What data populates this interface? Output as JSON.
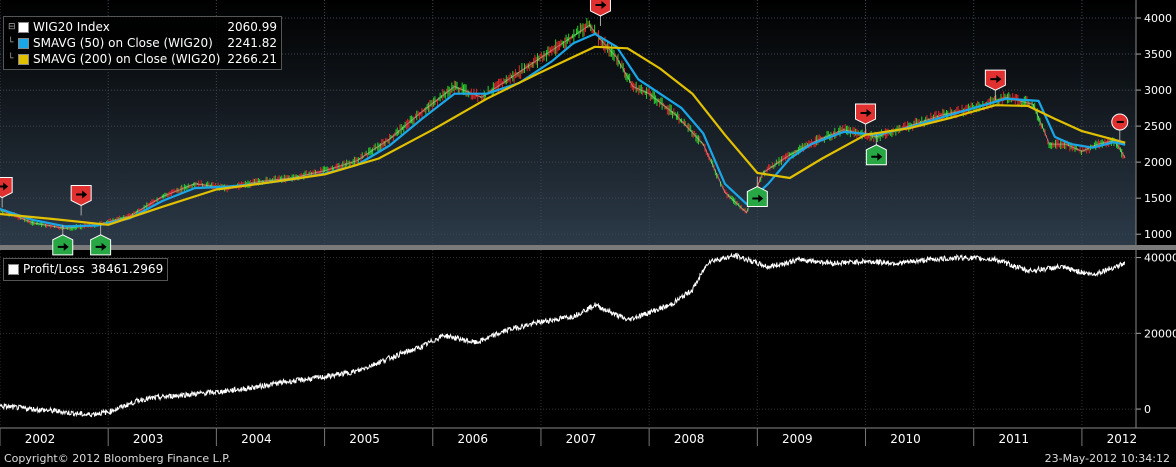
{
  "legend": {
    "items": [
      {
        "name": "WIG20 Index",
        "value": "2060.99",
        "color": "#ffffff"
      },
      {
        "name": "SMAVG (50) on Close (WIG20)",
        "value": "2241.82",
        "color": "#1aa7e8"
      },
      {
        "name": "SMAVG (200) on Close (WIG20)",
        "value": "2266.21",
        "color": "#e0c000"
      }
    ]
  },
  "pl_legend": {
    "name": "Profit/Loss",
    "value": "38461.2969",
    "color": "#ffffff"
  },
  "footer": {
    "copyright": "Copyright© 2012 Bloomberg Finance L.P.",
    "timestamp": "23-May-2012 10:34:12"
  },
  "chart_data": [
    {
      "type": "line",
      "panel": "price",
      "xlim": [
        2002.0,
        2012.5
      ],
      "ylim": [
        850,
        4250
      ],
      "y_ticks": [
        1000,
        1500,
        2000,
        2500,
        3000,
        3500,
        4000
      ],
      "y_tick_labels": [
        "1000",
        "1500",
        "2000",
        "2500",
        "3000",
        "3500",
        "4000"
      ],
      "grid": true,
      "series": [
        {
          "name": "WIG20 Index",
          "color": "#ffffff",
          "x": [
            2001.6,
            2002.0,
            2002.3,
            2002.6,
            2002.9,
            2003.2,
            2003.5,
            2003.8,
            2004.1,
            2004.4,
            2004.7,
            2005.0,
            2005.3,
            2005.6,
            2005.9,
            2006.2,
            2006.45,
            2006.7,
            2007.0,
            2007.3,
            2007.45,
            2007.55,
            2007.7,
            2007.85,
            2008.0,
            2008.25,
            2008.5,
            2008.7,
            2008.9,
            2009.05,
            2009.3,
            2009.55,
            2009.8,
            2010.1,
            2010.4,
            2010.7,
            2011.0,
            2011.3,
            2011.55,
            2011.7,
            2011.85,
            2012.0,
            2012.15,
            2012.3,
            2012.4
          ],
          "y": [
            1370,
            1340,
            1160,
            1080,
            1130,
            1250,
            1520,
            1700,
            1640,
            1730,
            1780,
            1880,
            2020,
            2320,
            2700,
            3050,
            2900,
            3150,
            3450,
            3750,
            3900,
            3700,
            3450,
            3050,
            2950,
            2650,
            2250,
            1580,
            1300,
            1850,
            2100,
            2300,
            2450,
            2350,
            2500,
            2650,
            2750,
            2900,
            2800,
            2250,
            2250,
            2150,
            2250,
            2300,
            2060
          ]
        },
        {
          "name": "SMAVG (50) on Close (WIG20)",
          "color": "#1aa7e8",
          "x": [
            2001.6,
            2002.0,
            2002.3,
            2002.6,
            2002.9,
            2003.2,
            2003.5,
            2003.8,
            2004.1,
            2004.4,
            2004.7,
            2005.0,
            2005.3,
            2005.6,
            2005.9,
            2006.2,
            2006.5,
            2006.8,
            2007.1,
            2007.3,
            2007.5,
            2007.7,
            2007.9,
            2008.1,
            2008.3,
            2008.5,
            2008.7,
            2008.9,
            2009.1,
            2009.3,
            2009.5,
            2009.8,
            2010.1,
            2010.4,
            2010.7,
            2011.0,
            2011.3,
            2011.6,
            2011.75,
            2011.9,
            2012.1,
            2012.3,
            2012.4
          ],
          "y": [
            1370,
            1350,
            1200,
            1110,
            1120,
            1220,
            1460,
            1640,
            1660,
            1700,
            1760,
            1840,
            1960,
            2230,
            2600,
            2950,
            2950,
            3100,
            3400,
            3650,
            3780,
            3600,
            3150,
            2950,
            2750,
            2400,
            1700,
            1420,
            1700,
            2050,
            2250,
            2420,
            2380,
            2480,
            2620,
            2750,
            2880,
            2850,
            2350,
            2250,
            2200,
            2280,
            2240
          ]
        },
        {
          "name": "SMAVG (200) on Close (WIG20)",
          "color": "#e0c000",
          "x": [
            2001.6,
            2002.0,
            2002.5,
            2003.0,
            2003.5,
            2004.0,
            2004.5,
            2005.0,
            2005.5,
            2006.0,
            2006.5,
            2007.0,
            2007.5,
            2007.8,
            2008.1,
            2008.4,
            2008.7,
            2009.0,
            2009.3,
            2009.6,
            2010.0,
            2010.4,
            2010.8,
            2011.2,
            2011.5,
            2011.75,
            2012.0,
            2012.4
          ],
          "y": [
            1310,
            1280,
            1210,
            1130,
            1380,
            1620,
            1720,
            1830,
            2050,
            2450,
            2880,
            3250,
            3600,
            3580,
            3300,
            2950,
            2380,
            1850,
            1780,
            2050,
            2380,
            2470,
            2620,
            2790,
            2780,
            2600,
            2430,
            2270
          ]
        }
      ],
      "annotations": [
        {
          "label": "sell",
          "color": "#e03030",
          "x": 2002.02,
          "y": 1370
        },
        {
          "label": "buy",
          "color": "#28a745",
          "x": 2002.58,
          "y": 1130
        },
        {
          "label": "sell",
          "color": "#e03030",
          "x": 2002.75,
          "y": 1260
        },
        {
          "label": "buy",
          "color": "#28a745",
          "x": 2002.93,
          "y": 1130
        },
        {
          "label": "sell",
          "color": "#e03030",
          "x": 2007.55,
          "y": 3890
        },
        {
          "label": "buy",
          "color": "#28a745",
          "x": 2009.0,
          "y": 1800
        },
        {
          "label": "sell",
          "color": "#e03030",
          "x": 2010.0,
          "y": 2390
        },
        {
          "label": "buy",
          "color": "#28a745",
          "x": 2010.1,
          "y": 2380
        },
        {
          "label": "sell",
          "color": "#e03030",
          "x": 2011.2,
          "y": 2860
        },
        {
          "label": "stop",
          "color": "#e03030",
          "x": 2012.35,
          "y": 2280
        }
      ]
    },
    {
      "type": "line",
      "panel": "profit_loss",
      "xlim": [
        2002.0,
        2012.5
      ],
      "ylim": [
        -5000,
        42000
      ],
      "y_ticks": [
        0,
        20000,
        40000
      ],
      "y_tick_labels": [
        "0",
        "20000",
        "40000"
      ],
      "grid": true,
      "series": [
        {
          "name": "Profit/Loss",
          "color": "#ffffff",
          "x": [
            2001.6,
            2002.0,
            2002.5,
            2002.8,
            2003.0,
            2003.3,
            2003.6,
            2004.0,
            2004.3,
            2004.6,
            2005.0,
            2005.3,
            2005.6,
            2005.9,
            2006.1,
            2006.4,
            2006.7,
            2007.0,
            2007.3,
            2007.5,
            2007.8,
            2008.0,
            2008.2,
            2008.4,
            2008.55,
            2008.8,
            2009.1,
            2009.4,
            2009.7,
            2010.0,
            2010.3,
            2010.6,
            2010.9,
            2011.2,
            2011.5,
            2011.8,
            2012.1,
            2012.4
          ],
          "y": [
            500,
            800,
            -500,
            -1500,
            -800,
            2500,
            3500,
            4500,
            5500,
            7000,
            8500,
            10000,
            13500,
            16500,
            19500,
            17500,
            21000,
            23000,
            24500,
            27500,
            23500,
            25500,
            27500,
            31500,
            39000,
            40500,
            37500,
            39500,
            38500,
            39000,
            38500,
            39500,
            40000,
            39500,
            36500,
            37500,
            35500,
            38500
          ]
        }
      ]
    }
  ],
  "x_axis": {
    "year_labels": [
      "2002",
      "2003",
      "2004",
      "2005",
      "2006",
      "2007",
      "2008",
      "2009",
      "2010",
      "2011",
      "2012"
    ]
  }
}
